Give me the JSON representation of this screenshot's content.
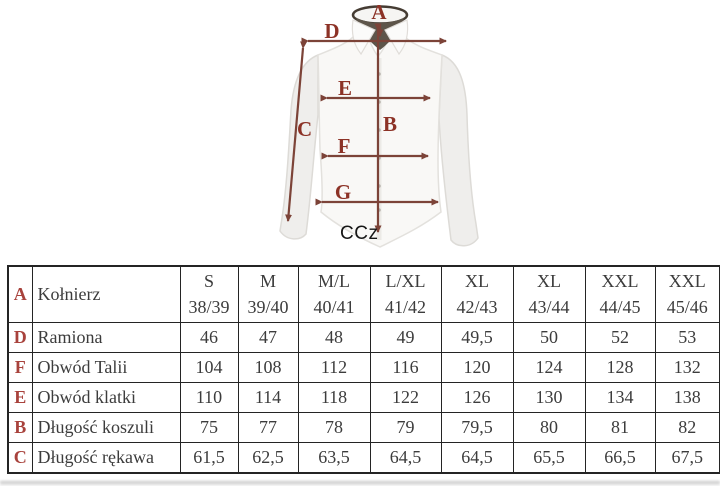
{
  "diagram": {
    "caption": "CCz",
    "labels": {
      "collar": "A",
      "shoulders": "D",
      "sleeve": "C",
      "chest": "E",
      "shirt_length": "B",
      "waist": "F",
      "hem": "G"
    },
    "colors": {
      "arrow": "#7c4338",
      "label": "#8c3226"
    }
  },
  "table": {
    "header": {
      "letter": "A",
      "label": "Kołnierz",
      "sizes": [
        {
          "size": "S",
          "range": "38/39"
        },
        {
          "size": "M",
          "range": "39/40"
        },
        {
          "size": "M/L",
          "range": "40/41"
        },
        {
          "size": "L/XL",
          "range": "41/42"
        },
        {
          "size": "XL",
          "range": "42/43"
        },
        {
          "size": "XL",
          "range": "43/44"
        },
        {
          "size": "XXL",
          "range": "44/45"
        },
        {
          "size": "XXL",
          "range": "45/46"
        }
      ]
    },
    "rows": [
      {
        "letter": "D",
        "label": "Ramiona",
        "values": [
          "46",
          "47",
          "48",
          "49",
          "49,5",
          "50",
          "52",
          "53"
        ]
      },
      {
        "letter": "F",
        "label": "Obwód Talii",
        "values": [
          "104",
          "108",
          "112",
          "116",
          "120",
          "124",
          "128",
          "132"
        ]
      },
      {
        "letter": "E",
        "label": "Obwód klatki",
        "values": [
          "110",
          "114",
          "118",
          "122",
          "126",
          "130",
          "134",
          "138"
        ]
      },
      {
        "letter": "B",
        "label": "Długość koszuli",
        "values": [
          "75",
          "77",
          "78",
          "79",
          "79,5",
          "80",
          "81",
          "82"
        ]
      },
      {
        "letter": "C",
        "label": "Długość rękawa",
        "values": [
          "61,5",
          "62,5",
          "63,5",
          "64,5",
          "64,5",
          "65,5",
          "66,5",
          "67,5"
        ]
      }
    ],
    "letter_color": "#a8423c"
  }
}
